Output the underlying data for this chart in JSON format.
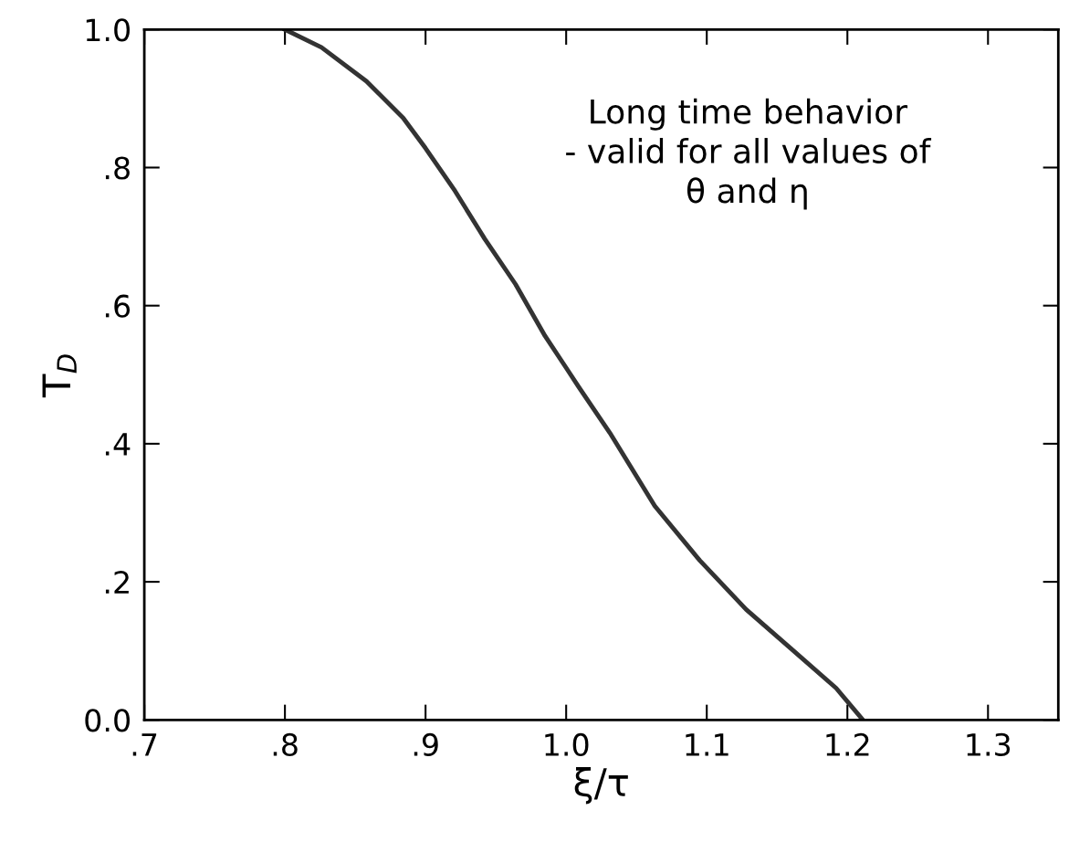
{
  "chart_data": {
    "type": "line",
    "xlabel": "ξ/τ",
    "ylabel": "T$_{D}$",
    "annotations": [
      "Long time behavior\n- valid for all values of\nθ and η"
    ],
    "x": [
      0.8,
      0.826,
      0.858,
      0.884,
      0.9,
      0.921,
      0.942,
      0.964,
      0.985,
      1.0,
      1.009,
      1.031,
      1.063,
      1.095,
      1.128,
      1.16,
      1.192,
      1.211
    ],
    "series": [
      {
        "color": "#333333",
        "values": [
          1.0,
          0.974,
          0.925,
          0.872,
          0.828,
          0.766,
          0.697,
          0.631,
          0.556,
          0.51,
          0.482,
          0.416,
          0.31,
          0.231,
          0.16,
          0.103,
          0.046,
          0.0
        ]
      }
    ],
    "xlim": [
      0.7,
      1.35
    ],
    "ylim": [
      0.0,
      1.0
    ],
    "xticks": [
      {
        "value": 0.7,
        "label": ".7"
      },
      {
        "value": 0.8,
        "label": ".8"
      },
      {
        "value": 0.9,
        "label": ".9"
      },
      {
        "value": 1.0,
        "label": "1.0"
      },
      {
        "value": 1.1,
        "label": "1.1"
      },
      {
        "value": 1.2,
        "label": "1.2"
      },
      {
        "value": 1.3,
        "label": "1.3"
      }
    ],
    "yticks": [
      {
        "value": 0.0,
        "label": "0.0"
      },
      {
        "value": 0.2,
        "label": ".2"
      },
      {
        "value": 0.4,
        "label": ".4"
      },
      {
        "value": 0.6,
        "label": ".6"
      },
      {
        "value": 0.8,
        "label": ".8"
      },
      {
        "value": 1.0,
        "label": "1.0"
      }
    ],
    "grid": false,
    "legend": false,
    "marker": "none",
    "line_style": "solid"
  }
}
